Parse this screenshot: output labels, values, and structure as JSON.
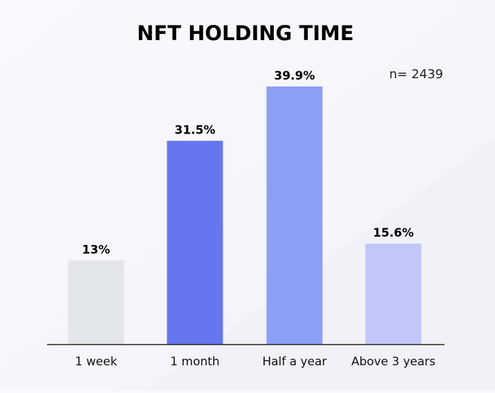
{
  "chart_data": {
    "type": "bar",
    "title": "NFT HOLDING TIME",
    "annotation": "n= 2439",
    "categories": [
      "1 week",
      "1 month",
      "Half a year",
      "Above 3 years"
    ],
    "values": [
      13,
      31.5,
      39.9,
      15.6
    ],
    "value_labels": [
      "13%",
      "31.5%",
      "39.9%",
      "15.6%"
    ],
    "colors": [
      "#e3e6e9",
      "#6576ee",
      "#8d9ef5",
      "#c1c8f8"
    ],
    "xlabel": "",
    "ylabel": "",
    "ylim": [
      0,
      40
    ],
    "grid": false,
    "legend": "none"
  }
}
